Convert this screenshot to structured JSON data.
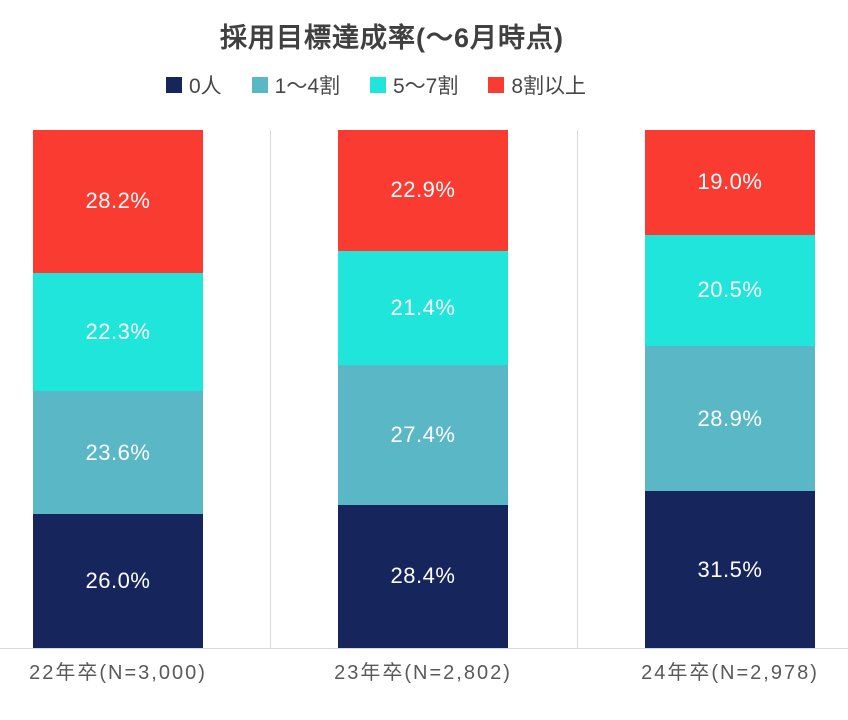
{
  "chart_data": {
    "type": "bar",
    "stacked": true,
    "orientation": "vertical",
    "title": "採用目標達成率(～6月時点)",
    "categories": [
      "22年卒(N=3,000)",
      "23年卒(N=2,802)",
      "24年卒(N=2,978)"
    ],
    "series": [
      {
        "name": "0人",
        "color": "#16265C",
        "values": [
          26.0,
          28.4,
          31.5
        ],
        "labels": [
          "26.0%",
          "28.4%",
          "31.5%"
        ]
      },
      {
        "name": "1～4割",
        "color": "#5AB7C6",
        "values": [
          23.6,
          27.4,
          28.9
        ],
        "labels": [
          "23.6%",
          "27.4%",
          "28.9%"
        ]
      },
      {
        "name": "5～7割",
        "color": "#1FE5DB",
        "values": [
          22.3,
          21.4,
          20.5
        ],
        "labels": [
          "22.3%",
          "21.4%",
          "20.5%"
        ]
      },
      {
        "name": "8割以上",
        "color": "#FA3B32",
        "values": [
          28.2,
          22.9,
          19.0
        ],
        "labels": [
          "28.2%",
          "22.9%",
          "19.0%"
        ]
      }
    ],
    "ylim": [
      0,
      100
    ],
    "value_label_color": "#ffffff",
    "gridline_color": "#d9d9d9",
    "legend_position": "top",
    "xlabel": "",
    "ylabel": ""
  }
}
